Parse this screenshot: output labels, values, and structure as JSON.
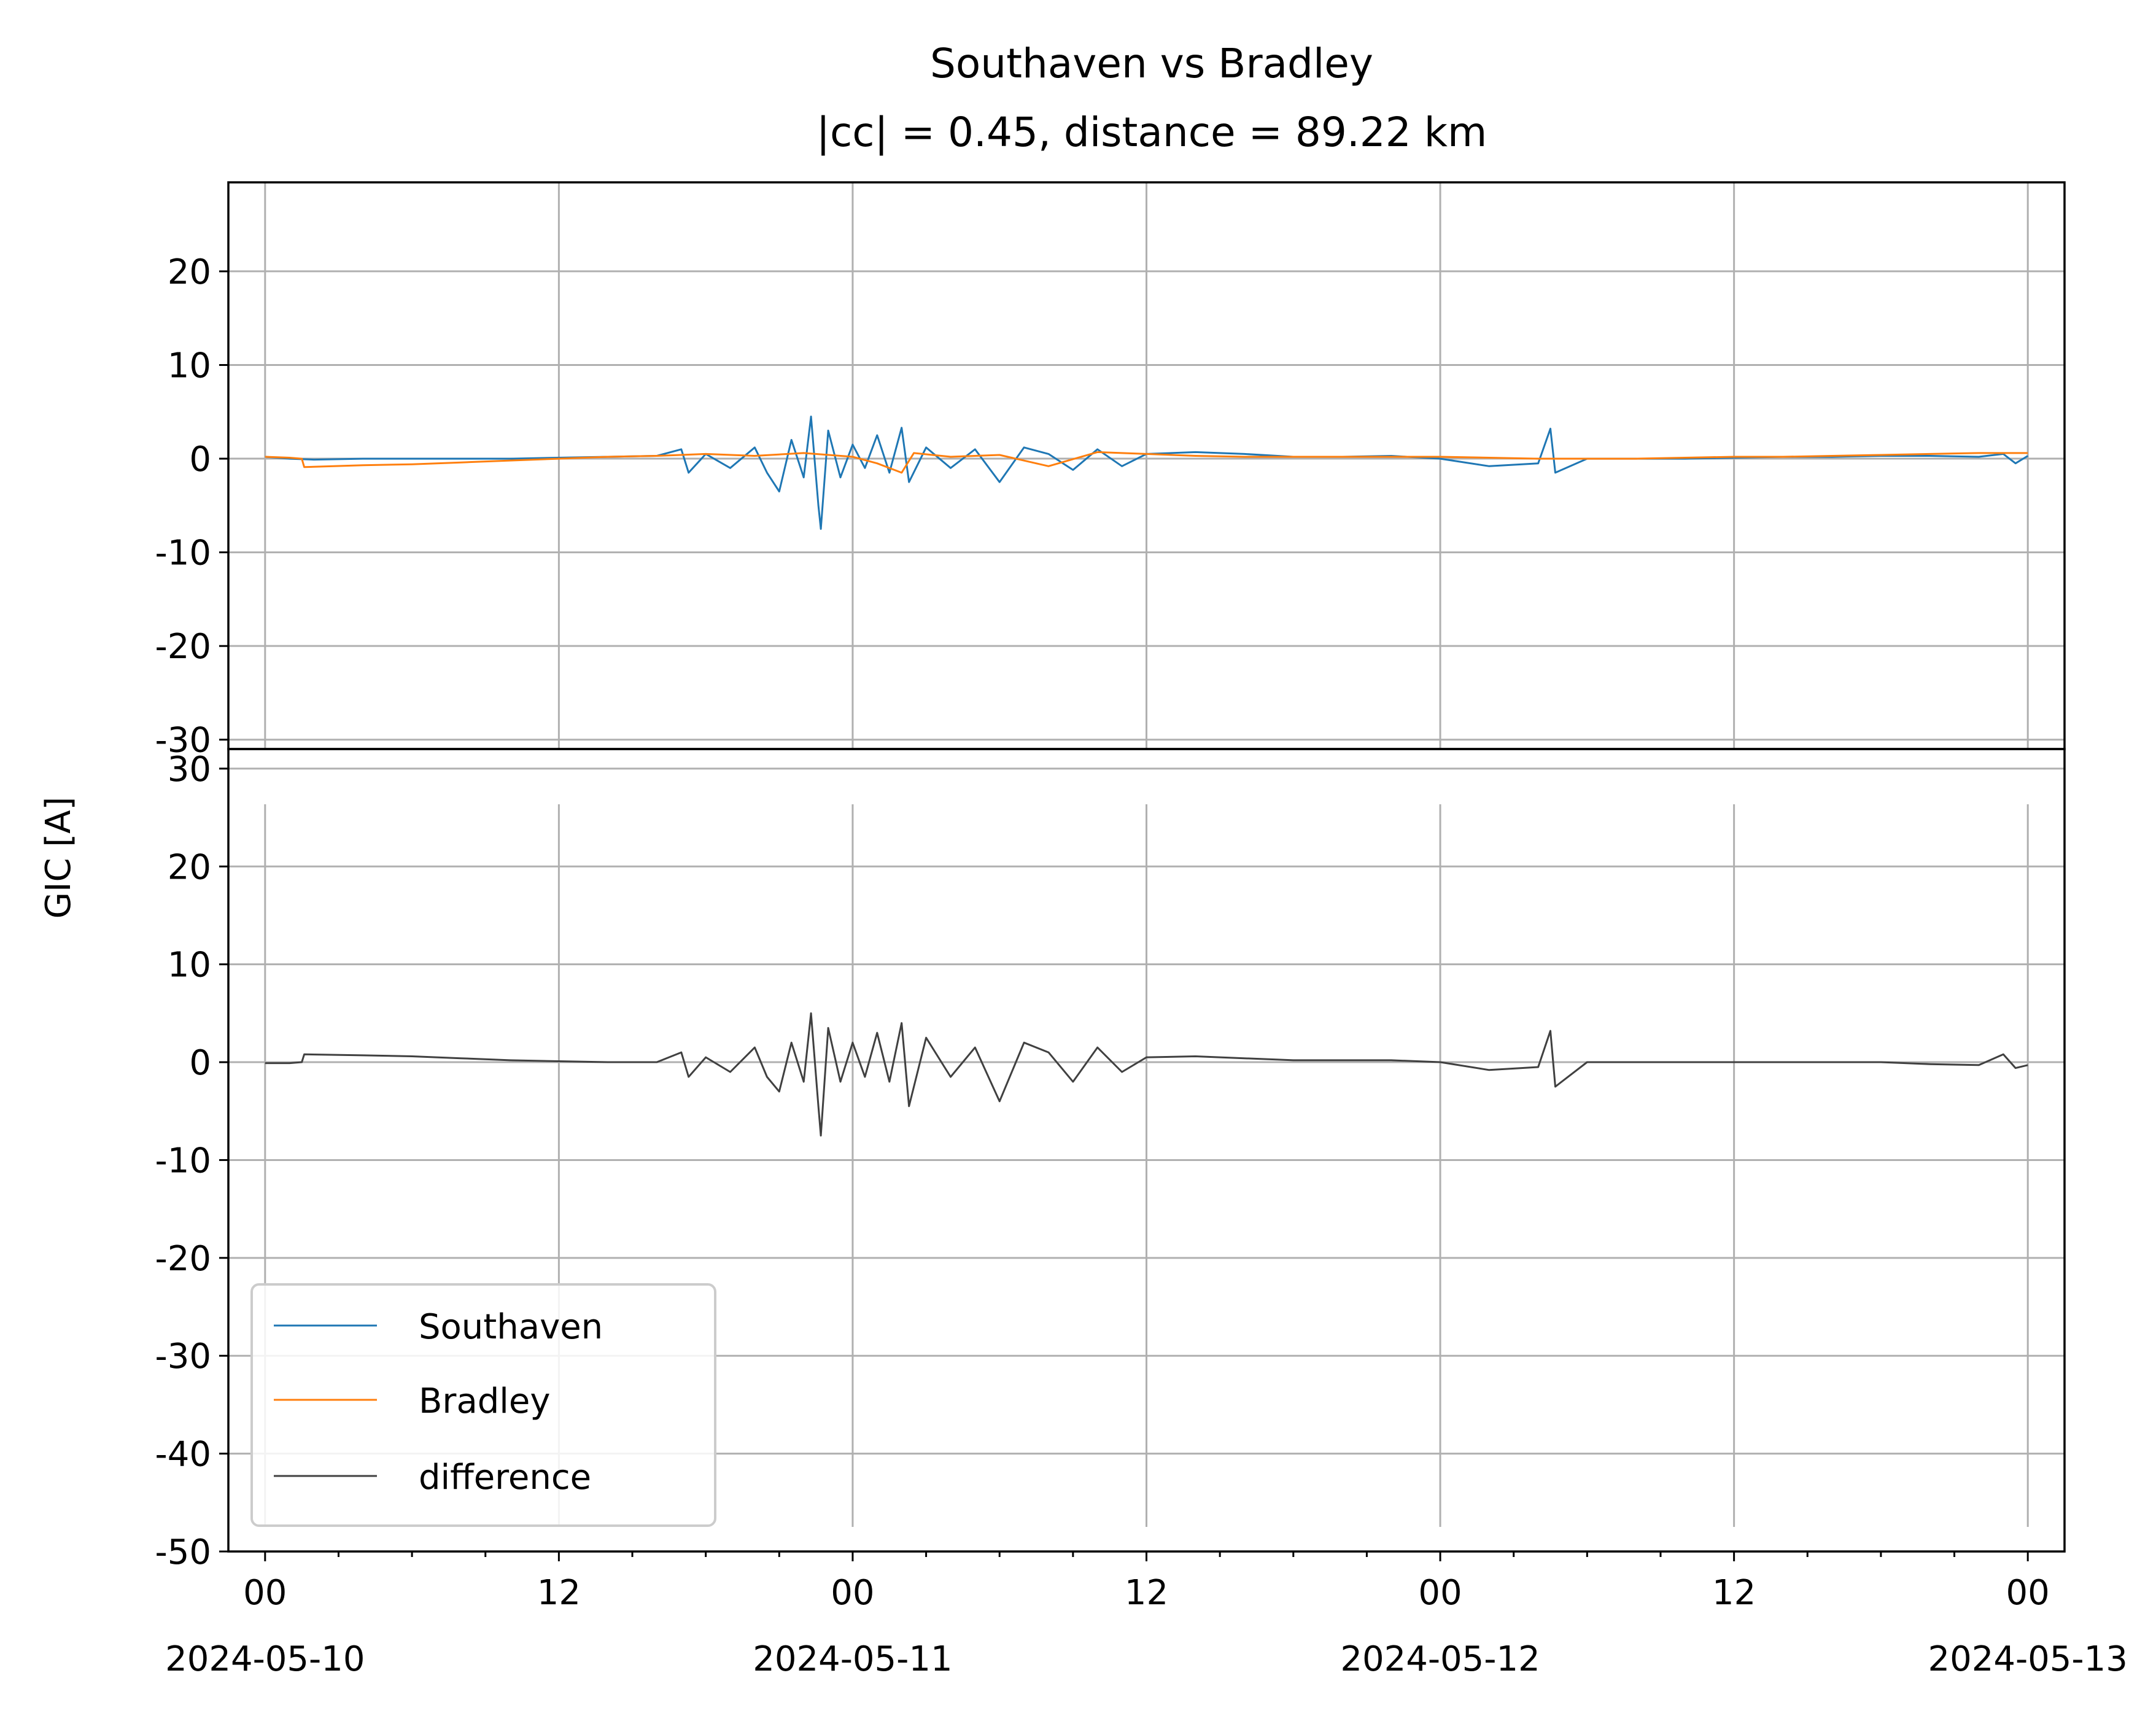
{
  "figure": {
    "title_line1": "Southaven vs Bradley",
    "title_line2": "|cc| = 0.45, distance = 89.22 km",
    "ylabel": "GIC [A]"
  },
  "legend": [
    {
      "name": "Southaven",
      "color": "#1f77b4"
    },
    {
      "name": "Bradley",
      "color": "#ff7f0e"
    },
    {
      "name": "difference",
      "color": "#404040"
    }
  ],
  "chart_data": [
    {
      "type": "line",
      "panel": "top",
      "x_axis": "time (hours since 2024-05-10 00:00)",
      "xlim_hours": [
        -1.5,
        73.5
      ],
      "ylim": [
        -31,
        29.5
      ],
      "yticks": [
        -30,
        -20,
        -10,
        0,
        10,
        20
      ],
      "grid": true,
      "series": [
        {
          "name": "Southaven",
          "color": "#1f77b4",
          "points": [
            [
              0,
              0.2
            ],
            [
              1,
              0.0
            ],
            [
              2,
              -0.1
            ],
            [
              4,
              0.0
            ],
            [
              6,
              0.0
            ],
            [
              8,
              0.0
            ],
            [
              10,
              0.0
            ],
            [
              12,
              0.1
            ],
            [
              14,
              0.2
            ],
            [
              16,
              0.3
            ],
            [
              17,
              1.0
            ],
            [
              17.3,
              -1.5
            ],
            [
              18,
              0.5
            ],
            [
              19,
              -1.0
            ],
            [
              20,
              1.2
            ],
            [
              20.5,
              -1.5
            ],
            [
              21,
              -3.5
            ],
            [
              21.5,
              2.0
            ],
            [
              22,
              -2.0
            ],
            [
              22.3,
              4.5
            ],
            [
              22.6,
              -5.0
            ],
            [
              22.7,
              -7.5
            ],
            [
              23,
              3.0
            ],
            [
              23.5,
              -2.0
            ],
            [
              24,
              1.5
            ],
            [
              24.5,
              -1.0
            ],
            [
              25,
              2.5
            ],
            [
              25.5,
              -1.5
            ],
            [
              26,
              3.3
            ],
            [
              26.3,
              -2.5
            ],
            [
              27,
              1.2
            ],
            [
              28,
              -1.0
            ],
            [
              29,
              1.0
            ],
            [
              30,
              -2.5
            ],
            [
              31,
              1.2
            ],
            [
              32,
              0.5
            ],
            [
              33,
              -1.2
            ],
            [
              34,
              1.0
            ],
            [
              35,
              -0.8
            ],
            [
              36,
              0.5
            ],
            [
              38,
              0.7
            ],
            [
              40,
              0.5
            ],
            [
              42,
              0.2
            ],
            [
              44,
              0.2
            ],
            [
              46,
              0.3
            ],
            [
              48,
              0.0
            ],
            [
              50,
              -0.8
            ],
            [
              52,
              -0.5
            ],
            [
              52.5,
              3.2
            ],
            [
              52.7,
              -1.5
            ],
            [
              54,
              0.0
            ],
            [
              56,
              0.0
            ],
            [
              58,
              0.0
            ],
            [
              60,
              0.1
            ],
            [
              62,
              0.2
            ],
            [
              64,
              0.2
            ],
            [
              66,
              0.3
            ],
            [
              68,
              0.3
            ],
            [
              70,
              0.2
            ],
            [
              71,
              0.5
            ],
            [
              71.5,
              -0.5
            ],
            [
              72,
              0.3
            ]
          ]
        },
        {
          "name": "Bradley",
          "color": "#ff7f0e",
          "points": [
            [
              0,
              0.2
            ],
            [
              1,
              0.1
            ],
            [
              1.5,
              0.0
            ],
            [
              1.6,
              -0.9
            ],
            [
              4,
              -0.7
            ],
            [
              6,
              -0.6
            ],
            [
              8,
              -0.4
            ],
            [
              10,
              -0.2
            ],
            [
              12,
              0.0
            ],
            [
              14,
              0.2
            ],
            [
              16,
              0.3
            ],
            [
              18,
              0.5
            ],
            [
              20,
              0.3
            ],
            [
              22,
              0.6
            ],
            [
              24,
              0.2
            ],
            [
              25,
              -0.5
            ],
            [
              26,
              -1.5
            ],
            [
              26.5,
              0.6
            ],
            [
              28,
              0.2
            ],
            [
              30,
              0.4
            ],
            [
              32,
              -0.8
            ],
            [
              34,
              0.7
            ],
            [
              36,
              0.5
            ],
            [
              38,
              0.3
            ],
            [
              40,
              0.2
            ],
            [
              42,
              0.2
            ],
            [
              44,
              0.2
            ],
            [
              46,
              0.2
            ],
            [
              48,
              0.2
            ],
            [
              50,
              0.1
            ],
            [
              52,
              0.0
            ],
            [
              54,
              0.0
            ],
            [
              56,
              0.0
            ],
            [
              58,
              0.1
            ],
            [
              60,
              0.2
            ],
            [
              62,
              0.2
            ],
            [
              64,
              0.3
            ],
            [
              66,
              0.4
            ],
            [
              68,
              0.5
            ],
            [
              70,
              0.6
            ],
            [
              72,
              0.6
            ]
          ]
        }
      ]
    },
    {
      "type": "line",
      "panel": "bottom",
      "x_axis": "time (hours since 2024-05-10 00:00)",
      "xlim_hours": [
        -1.5,
        73.5
      ],
      "ylim": [
        -50,
        32
      ],
      "yticks": [
        -50,
        -40,
        -30,
        -20,
        -10,
        0,
        10,
        20,
        30
      ],
      "xticks": [
        "00\n2024-05-10",
        "12",
        "00\n2024-05-11",
        "12",
        "00\n2024-05-12",
        "12",
        "00\n2024-05-13"
      ],
      "grid": true,
      "legend_position": "lower-left",
      "series": [
        {
          "name": "difference",
          "color": "#404040",
          "points": [
            [
              0,
              -0.1
            ],
            [
              1,
              -0.1
            ],
            [
              1.5,
              0.0
            ],
            [
              1.6,
              0.8
            ],
            [
              4,
              0.7
            ],
            [
              6,
              0.6
            ],
            [
              8,
              0.4
            ],
            [
              10,
              0.2
            ],
            [
              12,
              0.1
            ],
            [
              14,
              0.0
            ],
            [
              16,
              0.0
            ],
            [
              17,
              1.0
            ],
            [
              17.3,
              -1.5
            ],
            [
              18,
              0.5
            ],
            [
              19,
              -1.0
            ],
            [
              20,
              1.5
            ],
            [
              20.5,
              -1.5
            ],
            [
              21,
              -3.0
            ],
            [
              21.5,
              2.0
            ],
            [
              22,
              -2.0
            ],
            [
              22.3,
              5.0
            ],
            [
              22.6,
              -4.5
            ],
            [
              22.7,
              -7.5
            ],
            [
              23,
              3.5
            ],
            [
              23.5,
              -2.0
            ],
            [
              24,
              2.0
            ],
            [
              24.5,
              -1.5
            ],
            [
              25,
              3.0
            ],
            [
              25.5,
              -2.0
            ],
            [
              26,
              4.0
            ],
            [
              26.3,
              -4.5
            ],
            [
              27,
              2.5
            ],
            [
              28,
              -1.5
            ],
            [
              29,
              1.5
            ],
            [
              30,
              -4.0
            ],
            [
              31,
              2.0
            ],
            [
              32,
              1.0
            ],
            [
              33,
              -2.0
            ],
            [
              34,
              1.5
            ],
            [
              35,
              -1.0
            ],
            [
              36,
              0.5
            ],
            [
              38,
              0.6
            ],
            [
              40,
              0.4
            ],
            [
              42,
              0.2
            ],
            [
              44,
              0.2
            ],
            [
              46,
              0.2
            ],
            [
              48,
              0.0
            ],
            [
              50,
              -0.8
            ],
            [
              52,
              -0.5
            ],
            [
              52.5,
              3.2
            ],
            [
              52.7,
              -2.5
            ],
            [
              54,
              0.0
            ],
            [
              56,
              0.0
            ],
            [
              58,
              0.0
            ],
            [
              60,
              0.0
            ],
            [
              62,
              0.0
            ],
            [
              64,
              0.0
            ],
            [
              66,
              0.0
            ],
            [
              68,
              -0.2
            ],
            [
              70,
              -0.3
            ],
            [
              71,
              0.8
            ],
            [
              71.5,
              -0.6
            ],
            [
              72,
              -0.3
            ]
          ]
        }
      ]
    }
  ]
}
